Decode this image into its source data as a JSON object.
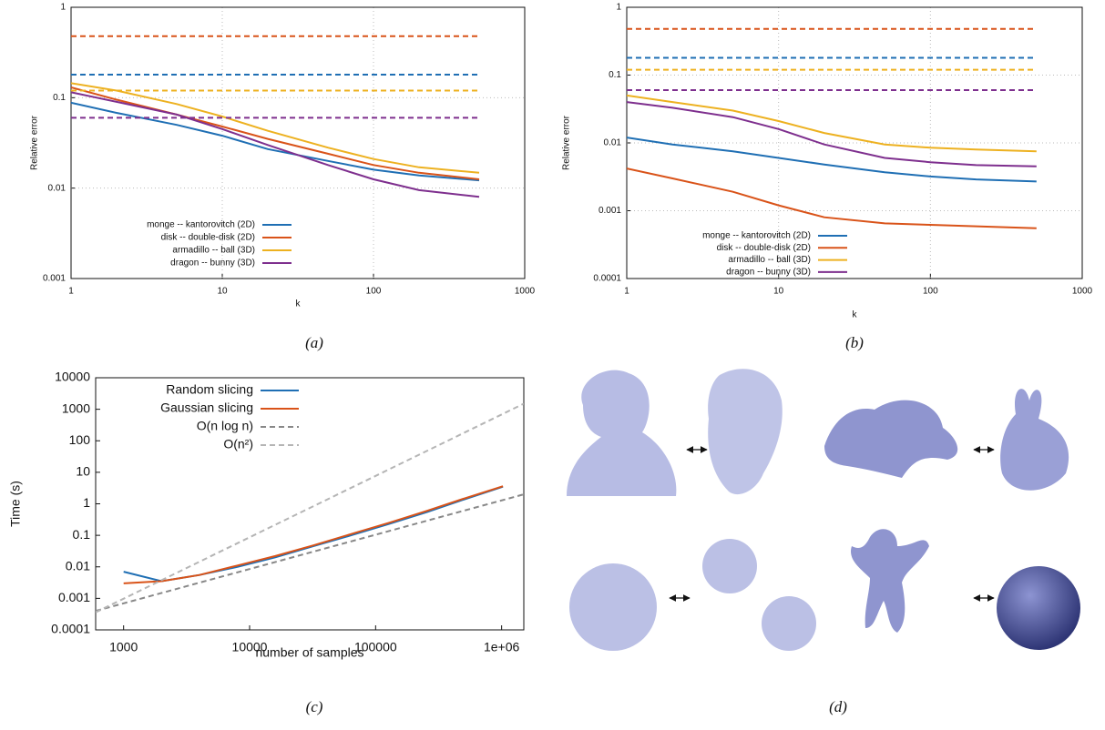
{
  "chart_data": [
    {
      "type": "line",
      "caption": "(a)",
      "xlabel": "k",
      "ylabel": "Relative error",
      "xlog": true,
      "ylog": true,
      "grid": true,
      "xlim": [
        1,
        1000
      ],
      "ylim": [
        0.001,
        1
      ],
      "xticks": [
        1,
        10,
        100,
        1000
      ],
      "yticks": [
        0.001,
        0.01,
        0.1,
        1
      ],
      "x": [
        1,
        2,
        5,
        10,
        20,
        50,
        100,
        200,
        500
      ],
      "series": [
        {
          "name": "monge -- kantorovitch (2D)",
          "color": "#1f6fb4",
          "values": [
            0.088,
            0.068,
            0.05,
            0.038,
            0.027,
            0.02,
            0.016,
            0.0138,
            0.0122
          ]
        },
        {
          "name": "disk -- double-disk (2D)",
          "color": "#d95319",
          "values": [
            0.13,
            0.095,
            0.065,
            0.048,
            0.035,
            0.024,
            0.018,
            0.0148,
            0.0125
          ]
        },
        {
          "name": "armadillo -- ball (3D)",
          "color": "#edb120",
          "values": [
            0.145,
            0.12,
            0.085,
            0.062,
            0.043,
            0.028,
            0.021,
            0.017,
            0.0148
          ]
        },
        {
          "name": "dragon -- bunny (3D)",
          "color": "#7e2f8e",
          "values": [
            0.115,
            0.09,
            0.065,
            0.045,
            0.03,
            0.018,
            0.0125,
            0.0095,
            0.008
          ]
        },
        {
          "color": "#1f6fb4",
          "dash": true,
          "values": [
            0.18,
            0.18,
            0.18,
            0.18,
            0.18,
            0.18,
            0.18,
            0.18,
            0.18
          ]
        },
        {
          "color": "#d95319",
          "dash": true,
          "values": [
            0.48,
            0.48,
            0.48,
            0.48,
            0.48,
            0.48,
            0.48,
            0.48,
            0.48
          ]
        },
        {
          "color": "#edb120",
          "dash": true,
          "values": [
            0.12,
            0.12,
            0.12,
            0.12,
            0.12,
            0.12,
            0.12,
            0.12,
            0.12
          ]
        },
        {
          "color": "#7e2f8e",
          "dash": true,
          "values": [
            0.06,
            0.06,
            0.06,
            0.06,
            0.06,
            0.06,
            0.06,
            0.06,
            0.06
          ]
        }
      ]
    },
    {
      "type": "line",
      "caption": "(b)",
      "xlabel": "k",
      "ylabel": "Relative error",
      "xlog": true,
      "ylog": true,
      "grid": true,
      "xlim": [
        1,
        1000
      ],
      "ylim": [
        0.0001,
        1
      ],
      "xticks": [
        1,
        10,
        100,
        1000
      ],
      "yticks": [
        0.0001,
        0.001,
        0.01,
        0.1,
        1
      ],
      "x": [
        1,
        2,
        5,
        10,
        20,
        50,
        100,
        200,
        500
      ],
      "series": [
        {
          "name": "monge -- kantorovitch (2D)",
          "color": "#1f6fb4",
          "values": [
            0.012,
            0.0095,
            0.0075,
            0.006,
            0.0048,
            0.0037,
            0.0032,
            0.0029,
            0.0027
          ]
        },
        {
          "name": "disk -- double-disk (2D)",
          "color": "#d95319",
          "values": [
            0.0042,
            0.003,
            0.0019,
            0.0012,
            0.0008,
            0.00065,
            0.00062,
            0.00059,
            0.00055
          ]
        },
        {
          "name": "armadillo -- ball (3D)",
          "color": "#edb120",
          "values": [
            0.05,
            0.04,
            0.03,
            0.021,
            0.014,
            0.0095,
            0.0085,
            0.008,
            0.0075
          ]
        },
        {
          "name": "dragon -- bunny (3D)",
          "color": "#7e2f8e",
          "values": [
            0.04,
            0.033,
            0.024,
            0.016,
            0.0095,
            0.006,
            0.0052,
            0.0047,
            0.0045
          ]
        },
        {
          "color": "#1f6fb4",
          "dash": true,
          "values": [
            0.18,
            0.18,
            0.18,
            0.18,
            0.18,
            0.18,
            0.18,
            0.18,
            0.18
          ]
        },
        {
          "color": "#d95319",
          "dash": true,
          "values": [
            0.48,
            0.48,
            0.48,
            0.48,
            0.48,
            0.48,
            0.48,
            0.48,
            0.48
          ]
        },
        {
          "color": "#edb120",
          "dash": true,
          "values": [
            0.12,
            0.12,
            0.12,
            0.12,
            0.12,
            0.12,
            0.12,
            0.12,
            0.12
          ]
        },
        {
          "color": "#7e2f8e",
          "dash": true,
          "values": [
            0.06,
            0.06,
            0.06,
            0.06,
            0.06,
            0.06,
            0.06,
            0.06,
            0.06
          ]
        }
      ]
    },
    {
      "type": "line",
      "caption": "(c)",
      "xlabel": "number of samples",
      "ylabel": "Time (s)",
      "xlog": true,
      "ylog": true,
      "grid": false,
      "xlim": [
        600,
        1500000
      ],
      "ylim": [
        0.0001,
        10000
      ],
      "xticks": [
        1000,
        10000,
        100000,
        {
          "value": 1000000,
          "label": "1e+06"
        }
      ],
      "yticks": [
        0.0001,
        0.001,
        0.01,
        0.1,
        1,
        10,
        100,
        1000,
        10000
      ],
      "series": [
        {
          "name": "Random slicing",
          "color": "#1f6fb4",
          "x": [
            1000,
            2000,
            4000,
            8000,
            16000,
            32000,
            64000,
            128000,
            256000,
            512000,
            1024000
          ],
          "values": [
            0.007,
            0.0035,
            0.0055,
            0.01,
            0.02,
            0.045,
            0.1,
            0.23,
            0.55,
            1.4,
            3.5
          ]
        },
        {
          "name": "Gaussian slicing",
          "color": "#d95319",
          "x": [
            1000,
            2000,
            4000,
            8000,
            16000,
            32000,
            64000,
            128000,
            256000,
            512000,
            1024000
          ],
          "values": [
            0.003,
            0.0035,
            0.0055,
            0.011,
            0.022,
            0.048,
            0.11,
            0.25,
            0.6,
            1.5,
            3.6
          ]
        },
        {
          "name": "O(n log n)",
          "color": "#888888",
          "dash": true,
          "x": [
            600,
            1500000
          ],
          "values": [
            0.0004,
            2
          ]
        },
        {
          "name": "O(n²)",
          "color": "#b5b5b5",
          "dash": true,
          "x": [
            600,
            1500000
          ],
          "values": [
            0.00036,
            1500
          ]
        }
      ]
    }
  ],
  "panel_d": {
    "caption": "(d)"
  }
}
